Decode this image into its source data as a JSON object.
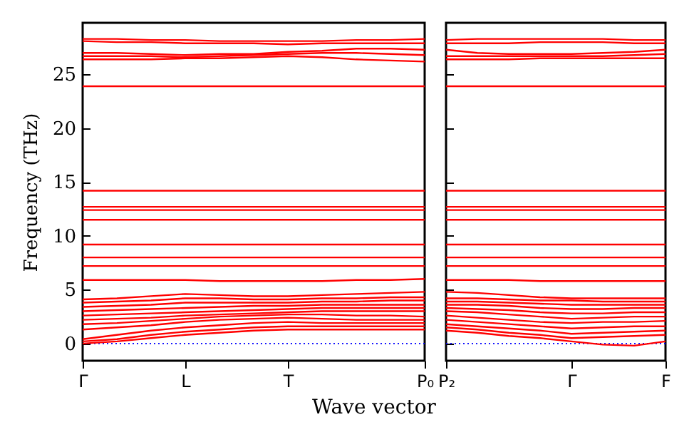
{
  "chart_data": [
    {
      "type": "line",
      "ylabel": "Frequency (THz)",
      "xlabel": "Wave vector",
      "categories": [
        "Γ",
        null,
        null,
        "L",
        null,
        null,
        "T",
        null,
        null,
        null,
        "P₀"
      ],
      "ylim": [
        -1.6,
        29.8
      ],
      "yticks": [
        0,
        5,
        10,
        15,
        20,
        25
      ],
      "grid": false,
      "ref_lines": [
        {
          "axis": "y",
          "value": 0,
          "color": "#0000ff",
          "line_style": "dotted"
        }
      ],
      "series": [
        {
          "color": "#ff0000",
          "values": [
            28.3,
            28.3,
            28.2,
            28.2,
            28.1,
            28.1,
            28.1,
            28.1,
            28.2,
            28.2,
            28.3
          ]
        },
        {
          "color": "#ff0000",
          "values": [
            28.1,
            28.0,
            28.0,
            27.9,
            27.9,
            27.9,
            27.8,
            27.9,
            27.9,
            27.9,
            27.9
          ]
        },
        {
          "color": "#ff0000",
          "values": [
            27.0,
            27.0,
            26.9,
            26.8,
            26.9,
            26.9,
            27.1,
            27.2,
            27.4,
            27.4,
            27.3
          ]
        },
        {
          "color": "#ff0000",
          "values": [
            26.7,
            26.7,
            26.7,
            26.6,
            26.7,
            26.8,
            26.9,
            27.0,
            27.0,
            26.9,
            26.8
          ]
        },
        {
          "color": "#ff0000",
          "values": [
            26.4,
            26.4,
            26.4,
            26.5,
            26.5,
            26.6,
            26.7,
            26.6,
            26.4,
            26.3,
            26.2
          ]
        },
        {
          "color": "#ff0000",
          "values": [
            23.9,
            23.9,
            23.9,
            23.9,
            23.9,
            23.9,
            23.9,
            23.9,
            23.9,
            23.9,
            23.9
          ]
        },
        {
          "color": "#ff0000",
          "values": [
            14.2,
            14.2,
            14.2,
            14.2,
            14.2,
            14.2,
            14.2,
            14.2,
            14.2,
            14.2,
            14.2
          ]
        },
        {
          "color": "#ff0000",
          "values": [
            12.7,
            12.7,
            12.7,
            12.7,
            12.7,
            12.7,
            12.7,
            12.7,
            12.7,
            12.7,
            12.7
          ]
        },
        {
          "color": "#ff0000",
          "values": [
            12.4,
            12.4,
            12.4,
            12.4,
            12.4,
            12.4,
            12.4,
            12.4,
            12.4,
            12.4,
            12.4
          ]
        },
        {
          "color": "#ff0000",
          "values": [
            11.5,
            11.5,
            11.5,
            11.5,
            11.5,
            11.5,
            11.5,
            11.5,
            11.5,
            11.5,
            11.5
          ]
        },
        {
          "color": "#ff0000",
          "values": [
            9.2,
            9.2,
            9.2,
            9.2,
            9.2,
            9.2,
            9.2,
            9.2,
            9.2,
            9.2,
            9.2
          ]
        },
        {
          "color": "#ff0000",
          "values": [
            8.0,
            8.0,
            8.0,
            8.0,
            8.0,
            8.0,
            8.0,
            8.0,
            8.0,
            8.0,
            8.0
          ]
        },
        {
          "color": "#ff0000",
          "values": [
            7.2,
            7.2,
            7.2,
            7.2,
            7.2,
            7.2,
            7.2,
            7.2,
            7.2,
            7.2,
            7.2
          ]
        },
        {
          "color": "#ff0000",
          "values": [
            5.9,
            5.9,
            5.9,
            5.9,
            5.8,
            5.8,
            5.8,
            5.8,
            5.9,
            5.9,
            6.0
          ]
        },
        {
          "color": "#ff0000",
          "values": [
            0,
            0.2,
            0.5,
            0.8,
            1.0,
            1.2,
            1.3,
            1.3,
            1.3,
            1.3,
            1.3
          ]
        },
        {
          "color": "#ff0000",
          "values": [
            0.2,
            0.4,
            0.8,
            1.1,
            1.3,
            1.5,
            1.6,
            1.6,
            1.6,
            1.6,
            1.6
          ]
        },
        {
          "color": "#ff0000",
          "values": [
            0.4,
            0.8,
            1.2,
            1.5,
            1.7,
            1.9,
            2.0,
            1.9,
            1.9,
            1.9,
            1.9
          ]
        },
        {
          "color": "#ff0000",
          "values": [
            1.3,
            1.5,
            1.7,
            2.0,
            2.2,
            2.3,
            2.4,
            2.3,
            2.2,
            2.2,
            2.2
          ]
        },
        {
          "color": "#ff0000",
          "values": [
            1.8,
            1.9,
            2.1,
            2.3,
            2.5,
            2.6,
            2.7,
            2.7,
            2.6,
            2.6,
            2.5
          ]
        },
        {
          "color": "#ff0000",
          "values": [
            2.2,
            2.3,
            2.4,
            2.6,
            2.7,
            2.8,
            2.9,
            3.0,
            3.0,
            3.0,
            3.0
          ]
        },
        {
          "color": "#ff0000",
          "values": [
            2.6,
            2.7,
            2.8,
            2.9,
            3.0,
            3.1,
            3.2,
            3.3,
            3.3,
            3.3,
            3.3
          ]
        },
        {
          "color": "#ff0000",
          "values": [
            3.0,
            3.1,
            3.2,
            3.3,
            3.4,
            3.5,
            3.5,
            3.6,
            3.6,
            3.6,
            3.6
          ]
        },
        {
          "color": "#ff0000",
          "values": [
            3.4,
            3.5,
            3.6,
            3.8,
            3.8,
            3.8,
            3.8,
            3.9,
            3.9,
            4.0,
            4.0
          ]
        },
        {
          "color": "#ff0000",
          "values": [
            3.8,
            3.9,
            4.0,
            4.2,
            4.2,
            4.1,
            4.1,
            4.2,
            4.2,
            4.3,
            4.3
          ]
        },
        {
          "color": "#ff0000",
          "values": [
            4.1,
            4.2,
            4.4,
            4.6,
            4.5,
            4.4,
            4.4,
            4.5,
            4.6,
            4.7,
            4.8
          ]
        }
      ]
    },
    {
      "type": "line",
      "tick_labels": "x",
      "categories": [
        "P₂",
        null,
        null,
        null,
        "Γ",
        null,
        null,
        "F"
      ],
      "ylim": [
        -1.6,
        29.8
      ],
      "yticks": [
        0,
        5,
        10,
        15,
        20,
        25
      ],
      "grid": false,
      "ref_lines": [
        {
          "axis": "y",
          "value": 0,
          "color": "#0000ff",
          "line_style": "dotted"
        }
      ],
      "series": [
        {
          "color": "#ff0000",
          "values": [
            28.2,
            28.3,
            28.3,
            28.3,
            28.3,
            28.3,
            28.2,
            28.2
          ]
        },
        {
          "color": "#ff0000",
          "values": [
            27.9,
            27.9,
            27.9,
            28.0,
            28.0,
            28.0,
            27.9,
            27.9
          ]
        },
        {
          "color": "#ff0000",
          "values": [
            27.3,
            27.0,
            26.9,
            26.9,
            26.9,
            27.0,
            27.1,
            27.3
          ]
        },
        {
          "color": "#ff0000",
          "values": [
            26.7,
            26.7,
            26.7,
            26.7,
            26.7,
            26.7,
            26.8,
            26.9
          ]
        },
        {
          "color": "#ff0000",
          "values": [
            26.4,
            26.4,
            26.4,
            26.5,
            26.5,
            26.5,
            26.5,
            26.5
          ]
        },
        {
          "color": "#ff0000",
          "values": [
            23.9,
            23.9,
            23.9,
            23.9,
            23.9,
            23.9,
            23.9,
            23.9
          ]
        },
        {
          "color": "#ff0000",
          "values": [
            14.2,
            14.2,
            14.2,
            14.2,
            14.2,
            14.2,
            14.2,
            14.2
          ]
        },
        {
          "color": "#ff0000",
          "values": [
            12.7,
            12.7,
            12.7,
            12.7,
            12.7,
            12.7,
            12.7,
            12.7
          ]
        },
        {
          "color": "#ff0000",
          "values": [
            12.4,
            12.4,
            12.4,
            12.4,
            12.4,
            12.4,
            12.4,
            12.4
          ]
        },
        {
          "color": "#ff0000",
          "values": [
            11.5,
            11.5,
            11.5,
            11.5,
            11.5,
            11.5,
            11.5,
            11.5
          ]
        },
        {
          "color": "#ff0000",
          "values": [
            9.2,
            9.2,
            9.2,
            9.2,
            9.2,
            9.2,
            9.2,
            9.2
          ]
        },
        {
          "color": "#ff0000",
          "values": [
            8.0,
            8.0,
            8.0,
            8.0,
            8.0,
            8.0,
            8.0,
            8.0
          ]
        },
        {
          "color": "#ff0000",
          "values": [
            7.2,
            7.2,
            7.2,
            7.2,
            7.2,
            7.2,
            7.2,
            7.2
          ]
        },
        {
          "color": "#ff0000",
          "values": [
            5.9,
            5.9,
            5.9,
            5.8,
            5.8,
            5.8,
            5.8,
            5.8
          ]
        },
        {
          "color": "#ff0000",
          "values": [
            1.2,
            1.0,
            0.7,
            0.5,
            0.2,
            -0.1,
            -0.2,
            0.2
          ]
        },
        {
          "color": "#ff0000",
          "values": [
            1.5,
            1.3,
            1.0,
            0.8,
            0.5,
            0.6,
            0.7,
            0.8
          ]
        },
        {
          "color": "#ff0000",
          "values": [
            1.8,
            1.6,
            1.4,
            1.2,
            0.9,
            1.0,
            1.1,
            1.2
          ]
        },
        {
          "color": "#ff0000",
          "values": [
            2.2,
            2.0,
            1.8,
            1.6,
            1.4,
            1.5,
            1.6,
            1.6
          ]
        },
        {
          "color": "#ff0000",
          "values": [
            2.6,
            2.4,
            2.2,
            2.0,
            1.9,
            2.0,
            2.0,
            2.1
          ]
        },
        {
          "color": "#ff0000",
          "values": [
            3.0,
            2.9,
            2.7,
            2.5,
            2.3,
            2.4,
            2.5,
            2.5
          ]
        },
        {
          "color": "#ff0000",
          "values": [
            3.3,
            3.2,
            3.1,
            2.9,
            2.8,
            2.8,
            2.9,
            2.9
          ]
        },
        {
          "color": "#ff0000",
          "values": [
            3.6,
            3.6,
            3.5,
            3.3,
            3.2,
            3.2,
            3.3,
            3.3
          ]
        },
        {
          "color": "#ff0000",
          "values": [
            3.9,
            3.9,
            3.8,
            3.7,
            3.6,
            3.6,
            3.6,
            3.6
          ]
        },
        {
          "color": "#ff0000",
          "values": [
            4.2,
            4.2,
            4.1,
            4.0,
            4.0,
            3.9,
            3.9,
            3.9
          ]
        },
        {
          "color": "#ff0000",
          "values": [
            4.8,
            4.7,
            4.5,
            4.3,
            4.2,
            4.2,
            4.2,
            4.2
          ]
        }
      ]
    }
  ]
}
